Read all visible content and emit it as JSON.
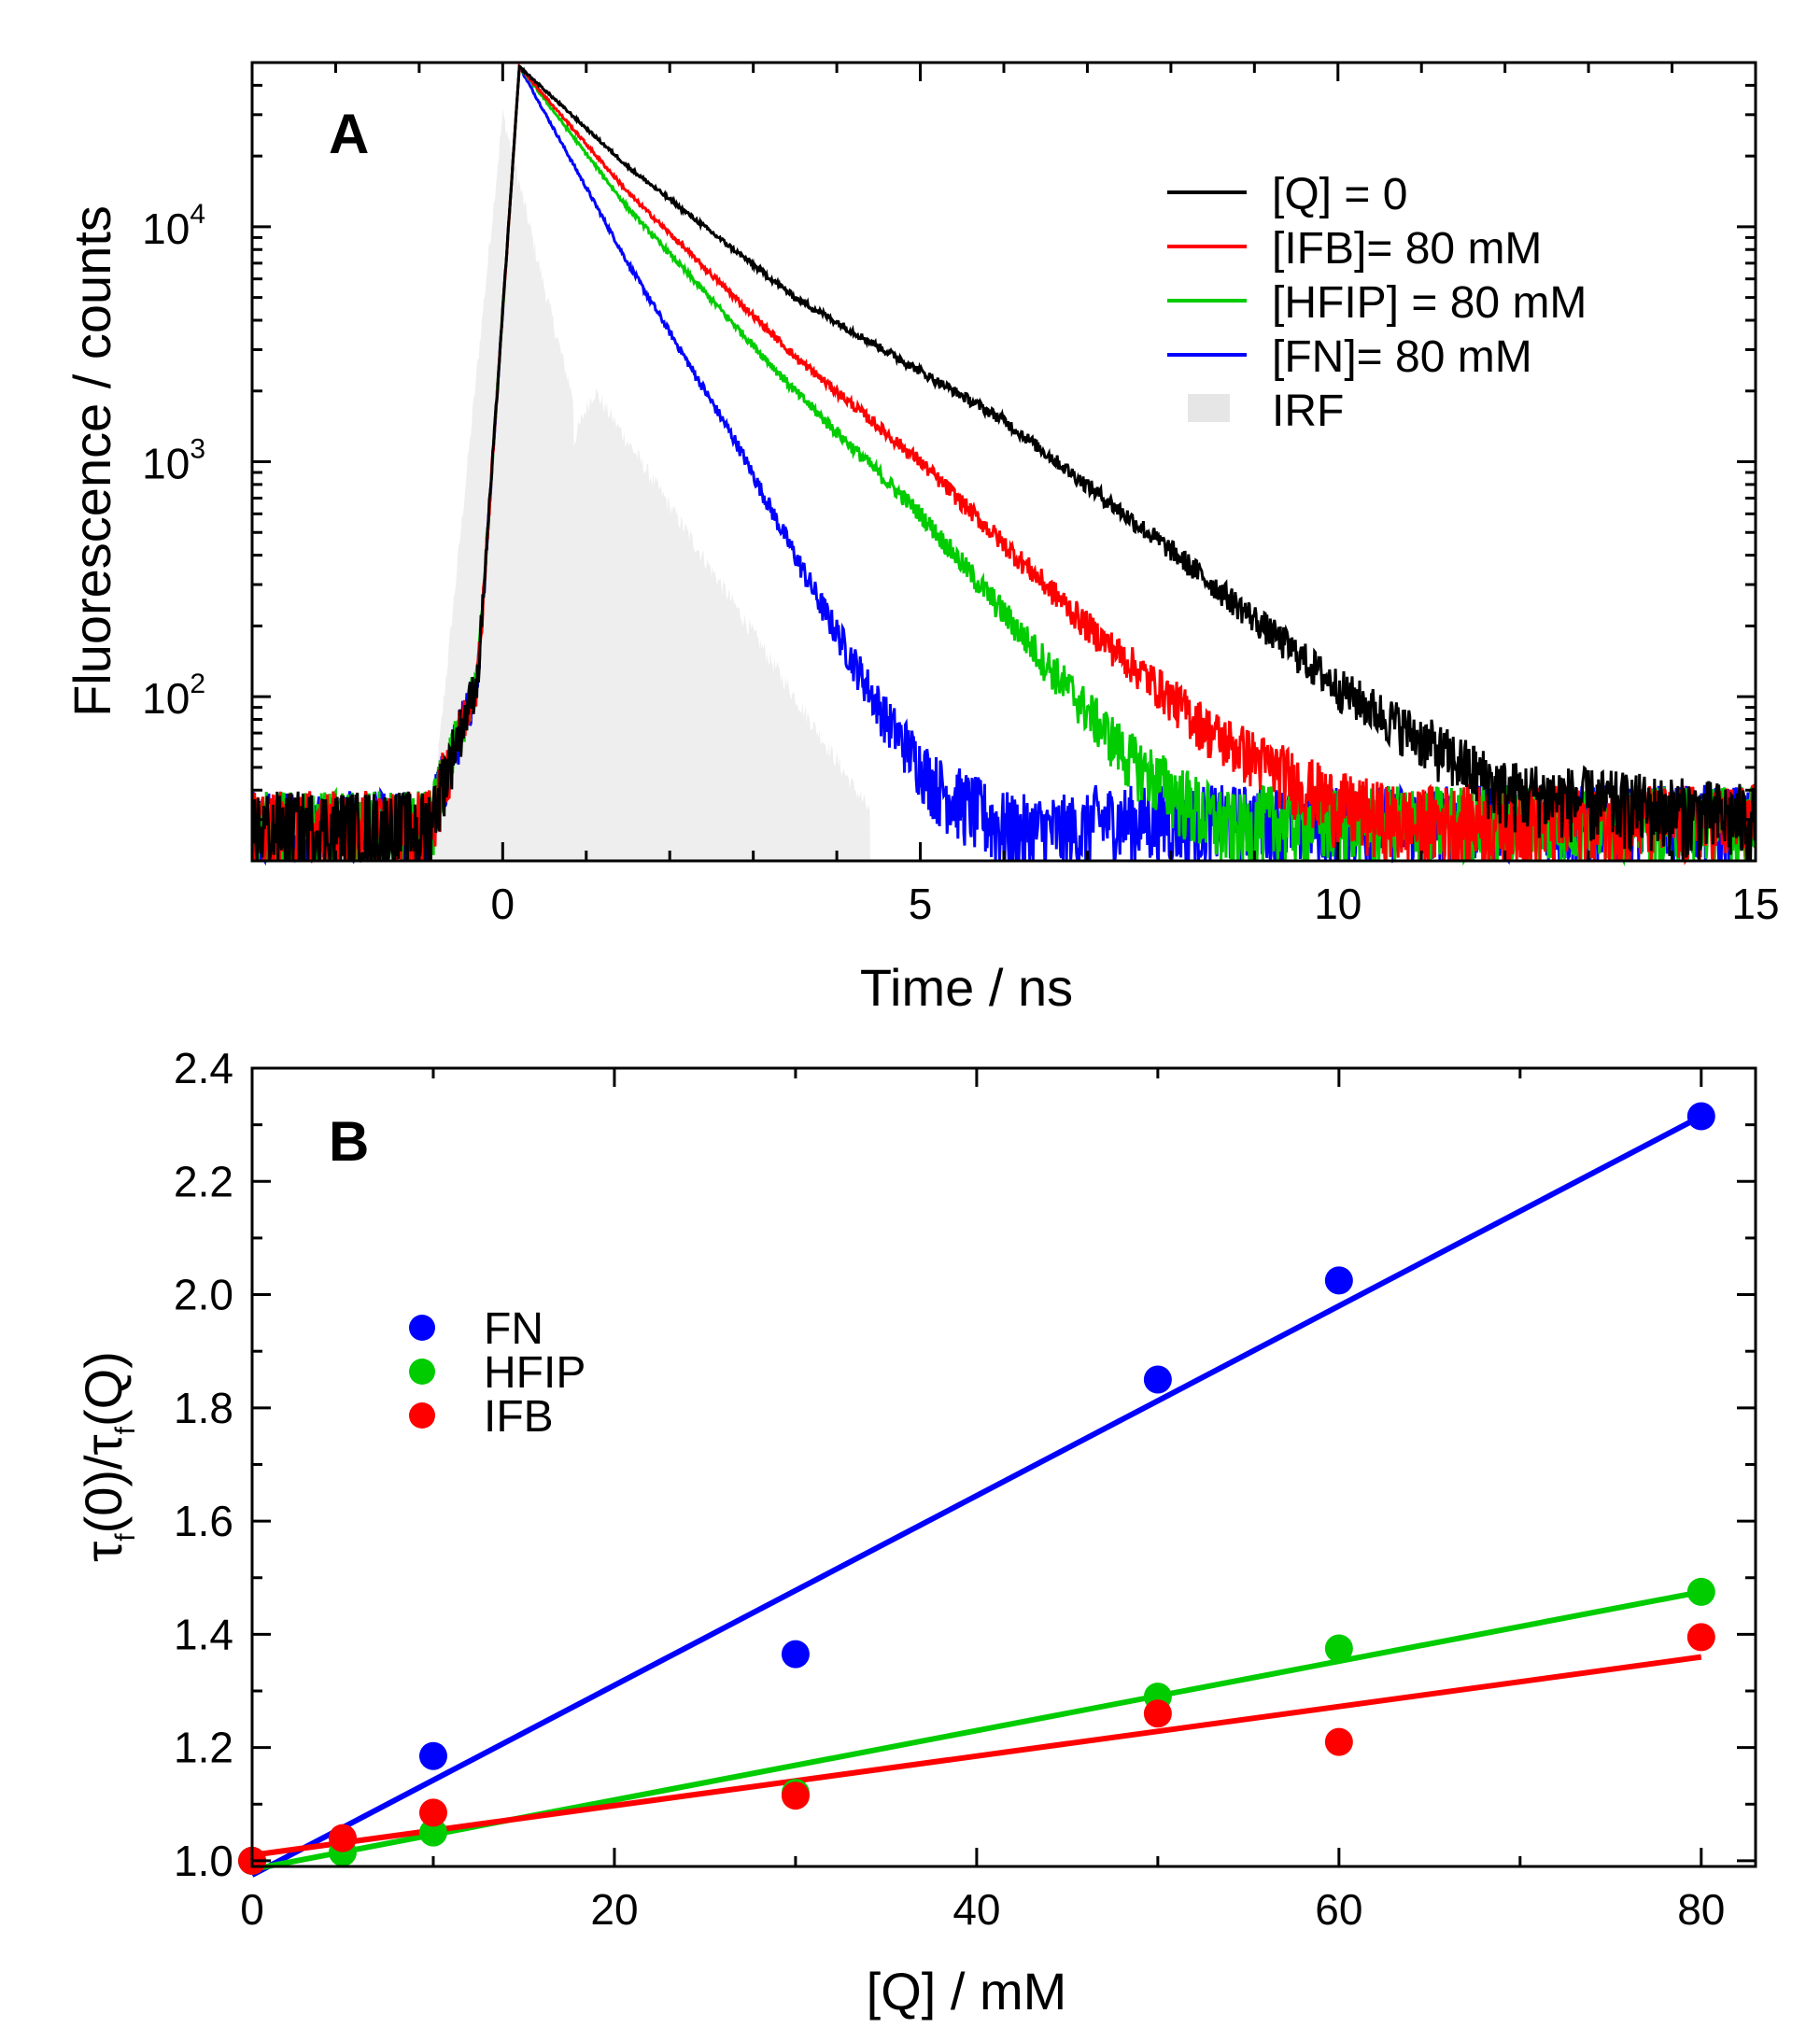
{
  "chart_data": [
    {
      "panel": "A",
      "type": "line",
      "x_scale": "linear",
      "y_scale": "log",
      "xlabel": "Time / ns",
      "ylabel": "Fluorescence / counts",
      "xlim": [
        -3,
        15
      ],
      "ylim": [
        20,
        50000
      ],
      "xticks": [
        0,
        5,
        10,
        15
      ],
      "yticks": [
        {
          "value": 10000,
          "base": "10",
          "exp": "4"
        },
        {
          "value": 1000,
          "base": "10",
          "exp": "3"
        },
        {
          "value": 100,
          "base": "10",
          "exp": "2"
        }
      ],
      "grid": false,
      "legend_position": "top-right",
      "noise_floor": 30,
      "series": [
        {
          "name": "[Q] = 0",
          "color": "#000000",
          "peak": 48000,
          "peak_time": 0.2,
          "decay_segments": [
            [
              0.2,
              48000
            ],
            [
              1.5,
              18000
            ],
            [
              3.5,
              5000
            ],
            [
              6,
              1500
            ],
            [
              8,
              420
            ],
            [
              10,
              110
            ],
            [
              12,
              40
            ],
            [
              15,
              30
            ]
          ]
        },
        {
          "name": "[IFB]= 80 mM",
          "color": "#ff0000",
          "peak": 48000,
          "peak_time": 0.2,
          "decay_segments": [
            [
              0.2,
              48000
            ],
            [
              1.5,
              14000
            ],
            [
              3.5,
              2800
            ],
            [
              5,
              1000
            ],
            [
              7,
              200
            ],
            [
              8.5,
              70
            ],
            [
              10,
              35
            ],
            [
              11,
              28
            ]
          ]
        },
        {
          "name": "[HFIP] = 80 mM",
          "color": "#00cc00",
          "peak": 48000,
          "peak_time": 0.2,
          "decay_segments": [
            [
              0.2,
              48000
            ],
            [
              1.5,
              12000
            ],
            [
              3.5,
              2000
            ],
            [
              5,
              600
            ],
            [
              6.5,
              140
            ],
            [
              7.5,
              55
            ],
            [
              8.5,
              30
            ],
            [
              9,
              25
            ]
          ]
        },
        {
          "name": "[FN]= 80 mM",
          "color": "#0000ff",
          "peak": 48000,
          "peak_time": 0.2,
          "decay_segments": [
            [
              0.2,
              48000
            ],
            [
              1.5,
              7000
            ],
            [
              2.8,
              1200
            ],
            [
              3.8,
              250
            ],
            [
              4.6,
              80
            ],
            [
              5.2,
              42
            ],
            [
              6,
              28
            ],
            [
              7,
              24
            ]
          ]
        }
      ],
      "irf": {
        "name": "IRF",
        "color": "#eeeeee"
      }
    },
    {
      "panel": "B",
      "type": "scatter",
      "xlabel": "[Q] / mM",
      "ylabel_parts": [
        "τ",
        "f",
        "(0)/",
        "τ",
        "f",
        "(Q)"
      ],
      "xlim": [
        0,
        83
      ],
      "ylim": [
        0.99,
        2.4
      ],
      "xticks": [
        0,
        20,
        40,
        60,
        80
      ],
      "yticks": [
        1.0,
        1.2,
        1.4,
        1.6,
        1.8,
        2.0,
        2.2,
        2.4
      ],
      "grid": false,
      "legend_position": "upper-left",
      "series": [
        {
          "name": "FN",
          "color": "#0000ff",
          "x": [
            0,
            10,
            30,
            50,
            60,
            80
          ],
          "y": [
            1.0,
            1.185,
            1.365,
            1.85,
            2.025,
            2.315
          ],
          "fit": {
            "x": [
              0,
              80
            ],
            "y": [
              0.975,
              2.315
            ]
          }
        },
        {
          "name": "HFIP",
          "color": "#00cc00",
          "x": [
            0,
            5,
            10,
            30,
            50,
            60,
            80
          ],
          "y": [
            1.0,
            1.015,
            1.05,
            1.12,
            1.29,
            1.375,
            1.475
          ],
          "fit": {
            "x": [
              0,
              80
            ],
            "y": [
              0.985,
              1.475
            ]
          }
        },
        {
          "name": "IFB",
          "color": "#ff0000",
          "x": [
            0,
            5,
            10,
            30,
            50,
            60,
            80
          ],
          "y": [
            1.0,
            1.04,
            1.085,
            1.115,
            1.26,
            1.21,
            1.395
          ],
          "fit": {
            "x": [
              0,
              80
            ],
            "y": [
              1.01,
              1.36
            ]
          }
        }
      ]
    }
  ]
}
